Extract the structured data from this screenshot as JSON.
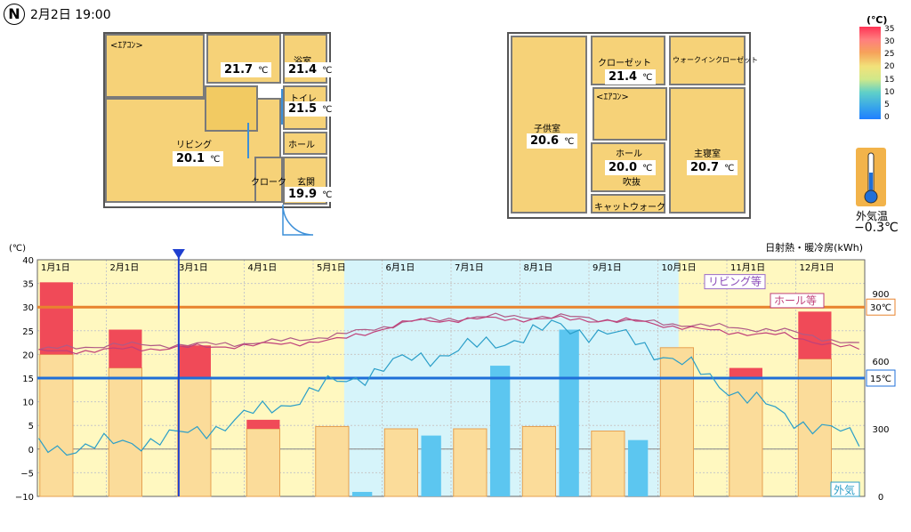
{
  "header": {
    "compass": "N",
    "datetime": "2月2日 19:00"
  },
  "plan1": {
    "rooms": [
      {
        "id": "aircon1",
        "label": "<ｴｱｺﾝ>",
        "temp": null
      },
      {
        "id": "room-small",
        "label": "",
        "temp": "21.7"
      },
      {
        "id": "bath",
        "label": "浴室",
        "temp": "21.4"
      },
      {
        "id": "toilet",
        "label": "トイレ",
        "temp": "21.5"
      },
      {
        "id": "hall1",
        "label": "ホール",
        "temp": null
      },
      {
        "id": "living",
        "label": "リビング",
        "temp": "20.1"
      },
      {
        "id": "closet1",
        "label": "クローク",
        "temp": null
      },
      {
        "id": "entrance",
        "label": "玄関",
        "temp": "19.9"
      }
    ]
  },
  "plan2": {
    "rooms": [
      {
        "id": "kids",
        "label": "子供室",
        "temp": "20.6"
      },
      {
        "id": "closet2",
        "label": "クローゼット",
        "temp": "21.4"
      },
      {
        "id": "walkin",
        "label": "ウォークインクローゼット",
        "temp": null
      },
      {
        "id": "aircon2",
        "label": "<ｴｱｺﾝ>",
        "temp": null
      },
      {
        "id": "hall2",
        "label": "ホール",
        "temp": "20.0"
      },
      {
        "id": "fukinuke",
        "label": "吹抜",
        "temp": null
      },
      {
        "id": "master",
        "label": "主寝室",
        "temp": "20.7"
      },
      {
        "id": "catwalk",
        "label": "キャットウォーク",
        "temp": null
      }
    ]
  },
  "unit_c": "℃",
  "scale": {
    "unit": "(℃)",
    "ticks": [
      "35",
      "30",
      "25",
      "20",
      "15",
      "10",
      "5",
      "0"
    ]
  },
  "outdoor": {
    "label": "外気温",
    "value": "−0.3℃"
  },
  "chart_data": {
    "type": "line",
    "x_ticks": [
      "1月1日",
      "2月1日",
      "3月1日",
      "4月1日",
      "5月1日",
      "6月1日",
      "7月1日",
      "8月1日",
      "9月1日",
      "10月1日",
      "11月1日",
      "12月1日"
    ],
    "ylabel": "(℃)",
    "y_left_ticks": [
      "40",
      "35",
      "30",
      "25",
      "20",
      "15",
      "10",
      "5",
      "0",
      "−5",
      "−10"
    ],
    "ylim_left": [
      -10,
      40
    ],
    "y2label": "日射熱・暖冷房(kWh)",
    "y_right_ticks": [
      "900",
      "600",
      "300",
      "0"
    ],
    "ylim_right": [
      0,
      1050
    ],
    "threshold_lines": [
      {
        "label": "30℃",
        "value": 30,
        "color": "#e8832e"
      },
      {
        "label": "15℃",
        "value": 15,
        "color": "#1f6fd8"
      }
    ],
    "cursor_month": 2.05,
    "series": [
      {
        "name": "リビング等",
        "color": "#b05a86",
        "values": [
          21,
          22,
          22,
          22.5,
          24,
          27,
          28,
          28,
          27,
          26,
          25,
          22
        ]
      },
      {
        "name": "ホール等",
        "color": "#c0417a",
        "values": [
          20.5,
          21,
          21.5,
          22,
          23,
          27,
          27.5,
          27.5,
          27,
          25,
          24,
          21
        ]
      },
      {
        "name": "外気",
        "color": "#2a9ec8",
        "values": [
          0,
          1,
          3,
          8,
          14,
          19,
          22,
          26,
          23,
          15,
          7,
          2
        ]
      }
    ],
    "solar_bars": [
      630,
      570,
      530,
      300,
      310,
      300,
      300,
      310,
      290,
      660,
      520,
      610
    ],
    "heating_bars": [
      320,
      170,
      140,
      40,
      0,
      0,
      0,
      0,
      0,
      0,
      50,
      210
    ],
    "cooling_bars": [
      0,
      0,
      0,
      0,
      20,
      270,
      580,
      740,
      250,
      0,
      0,
      0
    ]
  },
  "colors": {
    "room_fill": "#f6d278",
    "winter_bg": "#fff8c0",
    "summer_bg": "#d6f4fa",
    "solar": "#fbdc9a",
    "heating": "#f04a58",
    "cooling": "#5cc6f0"
  }
}
